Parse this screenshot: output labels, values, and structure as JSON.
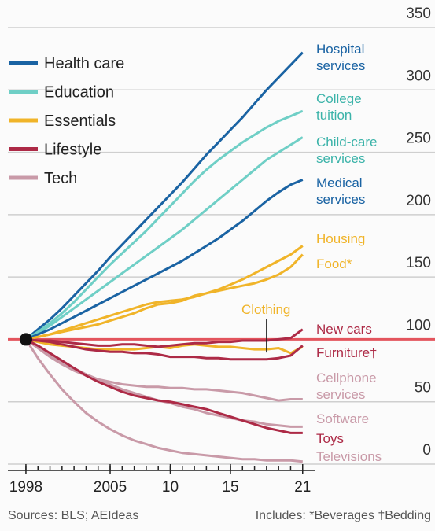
{
  "chart_data": {
    "type": "line",
    "x": [
      1998,
      1999,
      2000,
      2001,
      2002,
      2003,
      2004,
      2005,
      2006,
      2007,
      2008,
      2009,
      2010,
      2011,
      2012,
      2013,
      2014,
      2015,
      2016,
      2017,
      2018,
      2019,
      2020,
      2021
    ],
    "xlim": [
      1996.5,
      2023.5
    ],
    "xticks": [
      {
        "value": 1998,
        "label": "1998"
      },
      {
        "value": 2005,
        "label": "2005"
      },
      {
        "value": 2010,
        "label": "10"
      },
      {
        "value": 2015,
        "label": "15"
      },
      {
        "value": 2021,
        "label": "21"
      }
    ],
    "xminorticks": [
      1998,
      1999,
      2000,
      2001,
      2002,
      2003,
      2004,
      2005,
      2006,
      2007,
      2008,
      2009,
      2010,
      2011,
      2012,
      2013,
      2014,
      2015,
      2016,
      2017,
      2018,
      2019,
      2020,
      2021
    ],
    "ylim": [
      0,
      350
    ],
    "yticks": [
      0,
      50,
      100,
      150,
      200,
      250,
      300,
      350
    ],
    "grid": true,
    "baseline": 100,
    "baseline_color": "#e3545d",
    "legend": [
      {
        "name": "Health care",
        "color": "#1a63a3"
      },
      {
        "name": "Education",
        "color": "#6fcfc6"
      },
      {
        "name": "Essentials",
        "color": "#f0b429"
      },
      {
        "name": "Lifestyle",
        "color": "#ad2a46"
      },
      {
        "name": "Tech",
        "color": "#c99aa8"
      }
    ],
    "series": [
      {
        "name": "Hospital\nservices",
        "color": "#1a63a3",
        "values": [
          100,
          108,
          116,
          125,
          135,
          145,
          155,
          166,
          176,
          186,
          196,
          206,
          216,
          226,
          237,
          248,
          258,
          268,
          278,
          289,
          300,
          310,
          320,
          330
        ]
      },
      {
        "name": "College\ntuition",
        "color": "#6fcfc6",
        "values": [
          100,
          106,
          113,
          121,
          130,
          140,
          150,
          160,
          169,
          178,
          187,
          197,
          207,
          217,
          227,
          236,
          244,
          251,
          258,
          264,
          270,
          275,
          279,
          283
        ]
      },
      {
        "name": "Child-care\nservices",
        "color": "#6fcfc6",
        "values": [
          100,
          105,
          111,
          118,
          125,
          132,
          139,
          146,
          153,
          160,
          167,
          174,
          181,
          188,
          196,
          204,
          212,
          220,
          228,
          236,
          244,
          250,
          256,
          262
        ]
      },
      {
        "name": "Medical\nservices",
        "color": "#1a63a3",
        "values": [
          100,
          104,
          108,
          113,
          118,
          123,
          128,
          133,
          138,
          143,
          148,
          153,
          158,
          163,
          169,
          175,
          181,
          188,
          195,
          203,
          211,
          218,
          224,
          228
        ]
      },
      {
        "name": "Housing",
        "color": "#f0b429",
        "values": [
          100,
          102,
          104,
          107,
          110,
          113,
          116,
          119,
          122,
          125,
          128,
          130,
          131,
          132,
          134,
          137,
          140,
          144,
          148,
          153,
          158,
          163,
          168,
          175
        ]
      },
      {
        "name": "Food*",
        "color": "#f0b429",
        "values": [
          100,
          102,
          104,
          106,
          108,
          110,
          112,
          115,
          118,
          121,
          125,
          128,
          129,
          131,
          135,
          137,
          139,
          141,
          143,
          145,
          148,
          152,
          158,
          168
        ]
      },
      {
        "name": "Clothing",
        "color": "#f0b429",
        "values": [
          100,
          98,
          96,
          95,
          94,
          93,
          92,
          92,
          92,
          92,
          93,
          94,
          93,
          95,
          96,
          95,
          94,
          94,
          93,
          92,
          92,
          93,
          89,
          94
        ]
      },
      {
        "name": "New cars",
        "color": "#ad2a46",
        "values": [
          100,
          99,
          99,
          98,
          97,
          96,
          95,
          95,
          96,
          96,
          95,
          94,
          95,
          96,
          97,
          97,
          98,
          98,
          99,
          99,
          99,
          100,
          101,
          108
        ]
      },
      {
        "name": "Furniture†",
        "color": "#ad2a46",
        "values": [
          100,
          99,
          98,
          96,
          94,
          92,
          91,
          90,
          90,
          89,
          89,
          88,
          86,
          86,
          86,
          85,
          85,
          84,
          84,
          84,
          84,
          85,
          87,
          95
        ]
      },
      {
        "name": "Cellphone\nservices",
        "color": "#c99aa8",
        "values": [
          100,
          93,
          86,
          80,
          75,
          71,
          68,
          66,
          64,
          63,
          62,
          62,
          61,
          61,
          60,
          60,
          59,
          58,
          57,
          55,
          53,
          51,
          52,
          52
        ]
      },
      {
        "name": "Software",
        "color": "#c99aa8",
        "values": [
          100,
          94,
          88,
          82,
          77,
          72,
          68,
          64,
          60,
          57,
          54,
          51,
          49,
          46,
          44,
          41,
          39,
          37,
          35,
          34,
          32,
          31,
          30,
          30
        ]
      },
      {
        "name": "Toys",
        "color": "#ad2a46",
        "values": [
          100,
          95,
          89,
          83,
          77,
          71,
          66,
          62,
          58,
          55,
          53,
          51,
          50,
          48,
          46,
          44,
          41,
          38,
          35,
          32,
          29,
          27,
          25,
          25
        ]
      },
      {
        "name": "Televisions",
        "color": "#c99aa8",
        "values": [
          100,
          85,
          72,
          60,
          50,
          41,
          34,
          28,
          23,
          19,
          16,
          13,
          11,
          9,
          8,
          7,
          6,
          5,
          4,
          4,
          3,
          3,
          3,
          2
        ]
      }
    ],
    "source": "Sources: BLS; AEIdeas",
    "note": "Includes:  *Beverages   †Bedding"
  }
}
